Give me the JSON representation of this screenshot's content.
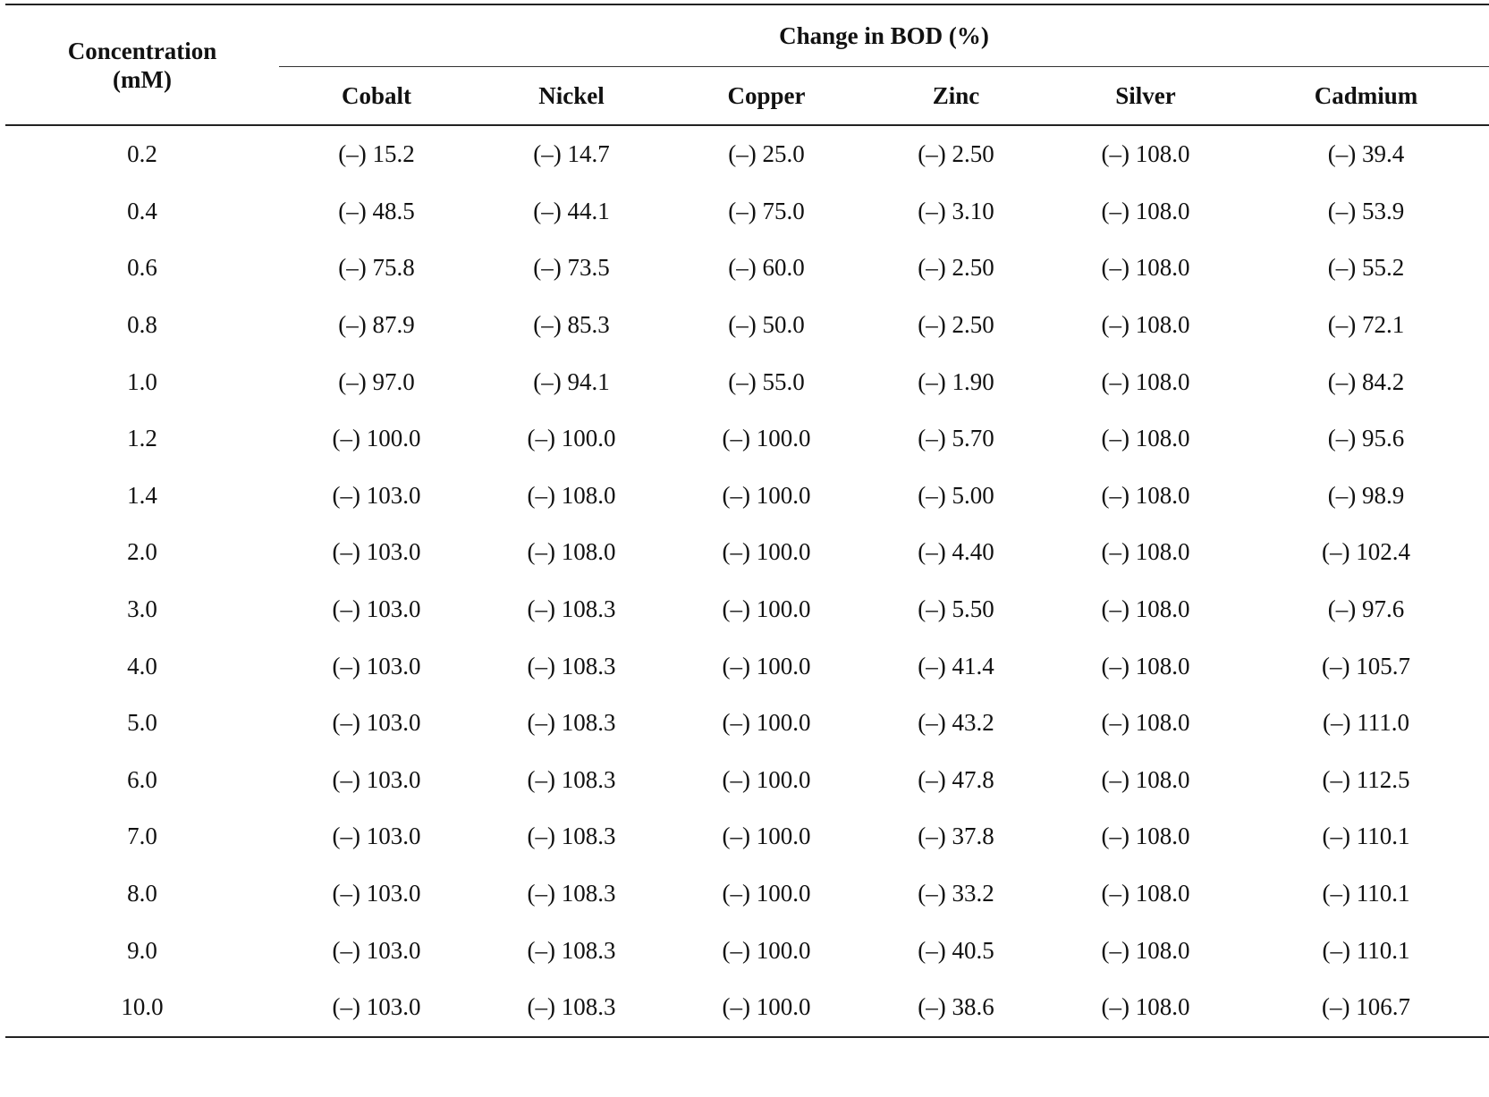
{
  "table": {
    "concentration_header_line1": "Concentration",
    "concentration_header_line2": "(mM)",
    "group_header": "Change in BOD (%)",
    "columns": [
      "Cobalt",
      "Nickel",
      "Copper",
      "Zinc",
      "Silver",
      "Cadmium"
    ],
    "rows": [
      {
        "conc": "0.2",
        "values": [
          "(–) 15.2",
          "(–) 14.7",
          "(–) 25.0",
          "(–) 2.50",
          "(–) 108.0",
          "(–) 39.4"
        ]
      },
      {
        "conc": "0.4",
        "values": [
          "(–) 48.5",
          "(–) 44.1",
          "(–) 75.0",
          "(–) 3.10",
          "(–) 108.0",
          "(–) 53.9"
        ]
      },
      {
        "conc": "0.6",
        "values": [
          "(–) 75.8",
          "(–) 73.5",
          "(–) 60.0",
          "(–) 2.50",
          "(–) 108.0",
          "(–) 55.2"
        ]
      },
      {
        "conc": "0.8",
        "values": [
          "(–) 87.9",
          "(–) 85.3",
          "(–) 50.0",
          "(–) 2.50",
          "(–) 108.0",
          "(–) 72.1"
        ]
      },
      {
        "conc": "1.0",
        "values": [
          "(–) 97.0",
          "(–) 94.1",
          "(–) 55.0",
          "(–) 1.90",
          "(–) 108.0",
          "(–) 84.2"
        ]
      },
      {
        "conc": "1.2",
        "values": [
          "(–) 100.0",
          "(–) 100.0",
          "(–) 100.0",
          "(–) 5.70",
          "(–) 108.0",
          "(–) 95.6"
        ]
      },
      {
        "conc": "1.4",
        "values": [
          "(–) 103.0",
          "(–) 108.0",
          "(–) 100.0",
          "(–) 5.00",
          "(–) 108.0",
          "(–) 98.9"
        ]
      },
      {
        "conc": "2.0",
        "values": [
          "(–) 103.0",
          "(–) 108.0",
          "(–) 100.0",
          "(–) 4.40",
          "(–) 108.0",
          "(–) 102.4"
        ]
      },
      {
        "conc": "3.0",
        "values": [
          "(–) 103.0",
          "(–) 108.3",
          "(–) 100.0",
          "(–) 5.50",
          "(–) 108.0",
          "(–) 97.6"
        ]
      },
      {
        "conc": "4.0",
        "values": [
          "(–) 103.0",
          "(–) 108.3",
          "(–) 100.0",
          "(–) 41.4",
          "(–) 108.0",
          "(–) 105.7"
        ]
      },
      {
        "conc": "5.0",
        "values": [
          "(–) 103.0",
          "(–) 108.3",
          "(–) 100.0",
          "(–) 43.2",
          "(–) 108.0",
          "(–) 111.0"
        ]
      },
      {
        "conc": "6.0",
        "values": [
          "(–) 103.0",
          "(–) 108.3",
          "(–) 100.0",
          "(–) 47.8",
          "(–) 108.0",
          "(–) 112.5"
        ]
      },
      {
        "conc": "7.0",
        "values": [
          "(–) 103.0",
          "(–) 108.3",
          "(–) 100.0",
          "(–) 37.8",
          "(–) 108.0",
          "(–) 110.1"
        ]
      },
      {
        "conc": "8.0",
        "values": [
          "(–) 103.0",
          "(–) 108.3",
          "(–) 100.0",
          "(–) 33.2",
          "(–) 108.0",
          "(–) 110.1"
        ]
      },
      {
        "conc": "9.0",
        "values": [
          "(–) 103.0",
          "(–) 108.3",
          "(–) 100.0",
          "(–) 40.5",
          "(–) 108.0",
          "(–) 110.1"
        ]
      },
      {
        "conc": "10.0",
        "values": [
          "(–) 103.0",
          "(–) 108.3",
          "(–) 100.0",
          "(–) 38.6",
          "(–) 108.0",
          "(–) 106.7"
        ]
      }
    ]
  }
}
